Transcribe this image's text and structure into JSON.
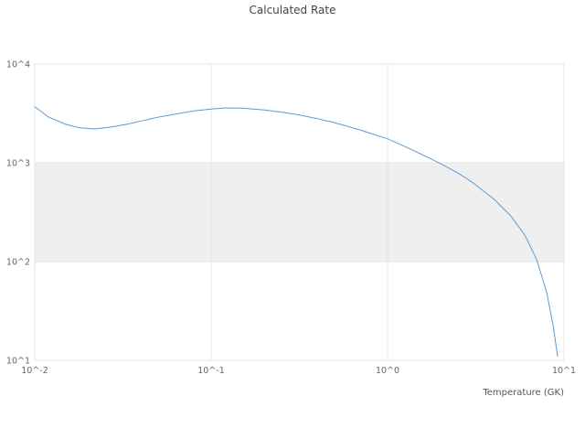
{
  "chart_data": {
    "type": "line",
    "title": "Calculated Rate",
    "xlabel": "Temperature (GK)",
    "ylabel": "",
    "xscale": "log",
    "yscale": "log",
    "xlim": [
      0.01,
      10
    ],
    "ylim": [
      10,
      10000
    ],
    "grid": true,
    "legend": "none",
    "x_ticks": {
      "values": [
        0.01,
        0.1,
        1,
        10
      ],
      "labels": [
        "10^-2",
        "10^-1",
        "10^0",
        "10^1"
      ]
    },
    "y_ticks": {
      "values": [
        10,
        100,
        1000,
        10000
      ],
      "labels": [
        "10^1",
        "10^2",
        "10^3",
        "10^4"
      ]
    },
    "band": {
      "y_from": 100,
      "y_to": 1000,
      "color": "#efefef"
    },
    "colors": {
      "line": "#5b9bd5",
      "grid": "#e4e4e4",
      "title_text": "#444444",
      "axis_text": "#666666"
    },
    "series": [
      {
        "name": "calculated-rate",
        "x": [
          0.01,
          0.012,
          0.015,
          0.018,
          0.022,
          0.027,
          0.033,
          0.04,
          0.05,
          0.065,
          0.08,
          0.1,
          0.12,
          0.15,
          0.2,
          0.25,
          0.3,
          0.4,
          0.5,
          0.7,
          1.0,
          1.3,
          1.7,
          2.0,
          2.5,
          3.0,
          4.0,
          5.0,
          6.0,
          7.0,
          8.0,
          8.7,
          9.2
        ],
        "y": [
          3700,
          2900,
          2450,
          2260,
          2200,
          2300,
          2450,
          2650,
          2900,
          3150,
          3350,
          3500,
          3590,
          3570,
          3420,
          3260,
          3100,
          2800,
          2550,
          2150,
          1750,
          1420,
          1130,
          980,
          790,
          640,
          430,
          290,
          185,
          105,
          48,
          22,
          11
        ]
      }
    ]
  }
}
